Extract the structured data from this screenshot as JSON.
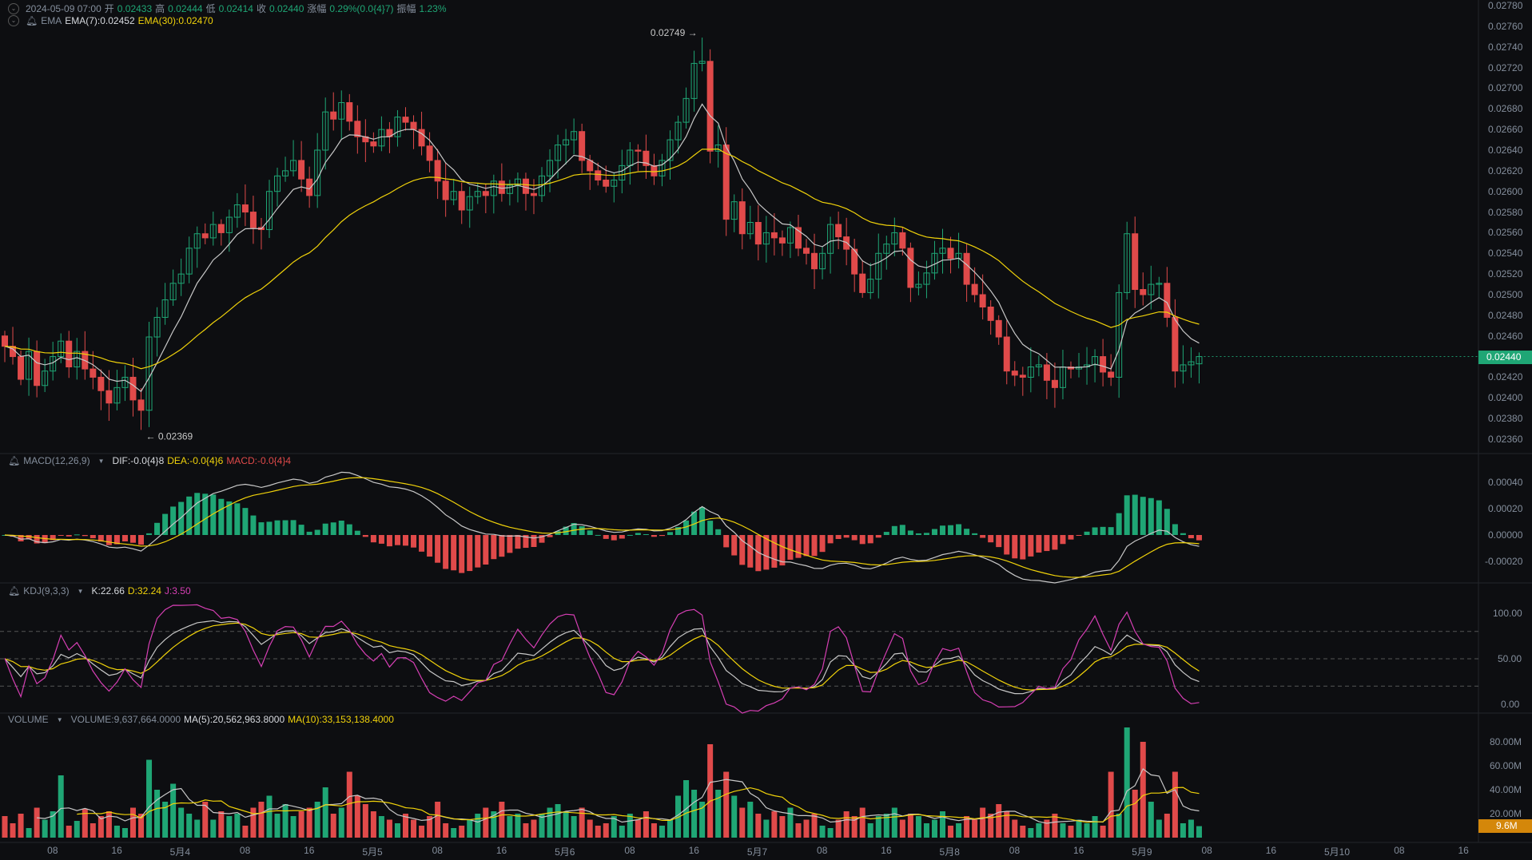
{
  "header": {
    "datetime": "2024-05-09 07:00",
    "open_label": "开",
    "open": "0.02433",
    "high_label": "高",
    "high": "0.02444",
    "low_label": "低",
    "low": "0.02414",
    "close_label": "收",
    "close": "0.02440",
    "change_label": "涨幅",
    "change": "0.29%(0.0{4}7)",
    "amplitude_label": "振幅",
    "amplitude": "1.23%"
  },
  "ema_legend": {
    "name": "EMA",
    "ema7": "EMA(7):0.02452",
    "ema30": "EMA(30):0.02470"
  },
  "macd_legend": {
    "name": "MACD(12,26,9)",
    "dif": "DIF:-0.0{4}8",
    "dea": "DEA:-0.0{4}6",
    "macd": "MACD:-0.0{4}4"
  },
  "kdj_legend": {
    "name": "KDJ(9,3,3)",
    "k": "K:22.66",
    "d": "D:32.24",
    "j": "J:3.50"
  },
  "volume_legend": {
    "name": "VOLUME",
    "volume": "VOLUME:9,637,664.0000",
    "ma5": "MA(5):20,562,963.8000",
    "ma10": "MA(10):33,153,138.4000"
  },
  "price_axis": [
    "0.02780",
    "0.02760",
    "0.02740",
    "0.02720",
    "0.02700",
    "0.02680",
    "0.02660",
    "0.02640",
    "0.02620",
    "0.02600",
    "0.02580",
    "0.02560",
    "0.02540",
    "0.02520",
    "0.02500",
    "0.02480",
    "0.02460",
    "0.02420",
    "0.02400",
    "0.02380",
    "0.02360"
  ],
  "current_price": "0.02440",
  "macd_axis": [
    "0.00040",
    "0.00020",
    "0.00000",
    "-0.00020"
  ],
  "kdj_axis": [
    "100.00",
    "50.00",
    "0.00"
  ],
  "volume_axis": [
    "80.00M",
    "60.00M",
    "40.00M",
    "20.00M"
  ],
  "current_volume": "9.6M",
  "time_axis": [
    "08",
    "16",
    "5月4",
    "08",
    "16",
    "5月5",
    "08",
    "16",
    "5月6",
    "08",
    "16",
    "5月7",
    "08",
    "16",
    "5月8",
    "08",
    "16",
    "5月9",
    "08",
    "16",
    "5月10",
    "08",
    "16"
  ],
  "annotations": {
    "max": "0.02749",
    "min": "0.02369"
  },
  "colors": {
    "up": "#1fa675",
    "down": "#e04a4a",
    "ema7": "#c8c8c8",
    "ema30": "#f0d20a",
    "j": "#d63fb4",
    "background": "#0d0e11"
  },
  "chart_data": {
    "type": "candlestick",
    "interval": "1h",
    "first_candle": "2024-05-03 02:00",
    "last_candle": "2024-05-09 07:00",
    "ylim": [
      0.0235,
      0.0279
    ],
    "max_high": 0.02749,
    "min_low": 0.02369,
    "close": [
      0.0245,
      0.0244,
      0.02418,
      0.02445,
      0.02412,
      0.02426,
      0.0244,
      0.02455,
      0.0243,
      0.02445,
      0.02428,
      0.0242,
      0.02407,
      0.02395,
      0.0241,
      0.0242,
      0.02398,
      0.02388,
      0.02459,
      0.02478,
      0.02495,
      0.02511,
      0.0252,
      0.02545,
      0.02559,
      0.02555,
      0.02568,
      0.0256,
      0.02575,
      0.02587,
      0.0258,
      0.02565,
      0.02563,
      0.026,
      0.02615,
      0.0262,
      0.0263,
      0.02612,
      0.02596,
      0.0264,
      0.02677,
      0.0267,
      0.02686,
      0.02668,
      0.02653,
      0.02648,
      0.02644,
      0.0266,
      0.02653,
      0.02672,
      0.02667,
      0.0266,
      0.02644,
      0.0263,
      0.0261,
      0.02592,
      0.026,
      0.02582,
      0.02595,
      0.026,
      0.02596,
      0.0261,
      0.02598,
      0.02606,
      0.02612,
      0.02598,
      0.02596,
      0.02615,
      0.0263,
      0.02645,
      0.0265,
      0.02658,
      0.0263,
      0.0262,
      0.02611,
      0.02605,
      0.02611,
      0.02625,
      0.0264,
      0.02639,
      0.02625,
      0.02615,
      0.0263,
      0.0265,
      0.02667,
      0.0269,
      0.02724,
      0.02726,
      0.02639,
      0.02645,
      0.02573,
      0.0259,
      0.02559,
      0.0257,
      0.02549,
      0.0256,
      0.02555,
      0.0255,
      0.02565,
      0.02545,
      0.0254,
      0.02525,
      0.0254,
      0.02568,
      0.02556,
      0.02544,
      0.0252,
      0.02502,
      0.02515,
      0.0254,
      0.02549,
      0.0256,
      0.02545,
      0.02507,
      0.0251,
      0.02521,
      0.0254,
      0.02545,
      0.02535,
      0.0254,
      0.0251,
      0.025,
      0.02488,
      0.02475,
      0.02459,
      0.02426,
      0.02422,
      0.0242,
      0.0243,
      0.02432,
      0.02417,
      0.0241,
      0.0243,
      0.02428,
      0.0243,
      0.02432,
      0.0244,
      0.02425,
      0.0242,
      0.02502,
      0.02559,
      0.02505,
      0.025,
      0.0251,
      0.02511,
      0.02478,
      0.02426,
      0.02432,
      0.02435,
      0.0244
    ],
    "volume_millions": [
      18,
      12,
      20,
      8,
      25,
      15,
      22,
      52,
      10,
      14,
      24,
      12,
      18,
      22,
      10,
      8,
      25,
      20,
      65,
      40,
      30,
      45,
      25,
      20,
      15,
      30,
      15,
      22,
      18,
      20,
      10,
      25,
      30,
      35,
      20,
      28,
      18,
      22,
      25,
      30,
      42,
      20,
      25,
      55,
      35,
      28,
      22,
      18,
      15,
      12,
      20,
      15,
      10,
      18,
      30,
      12,
      8,
      10,
      15,
      20,
      25,
      22,
      30,
      18,
      20,
      12,
      15,
      20,
      25,
      28,
      22,
      18,
      25,
      15,
      10,
      12,
      18,
      10,
      20,
      15,
      22,
      12,
      10,
      15,
      35,
      48,
      40,
      30,
      78,
      40,
      55,
      35,
      25,
      30,
      20,
      15,
      22,
      18,
      25,
      12,
      15,
      20,
      10,
      8,
      15,
      22,
      18,
      25,
      12,
      18,
      20,
      25,
      15,
      20,
      18,
      12,
      15,
      22,
      10,
      12,
      18,
      15,
      25,
      20,
      28,
      22,
      15,
      10,
      8,
      12,
      15,
      20,
      12,
      10,
      15,
      12,
      18,
      10,
      55,
      20,
      92,
      40,
      80,
      30,
      15,
      20,
      55,
      12,
      15,
      9.6
    ]
  }
}
